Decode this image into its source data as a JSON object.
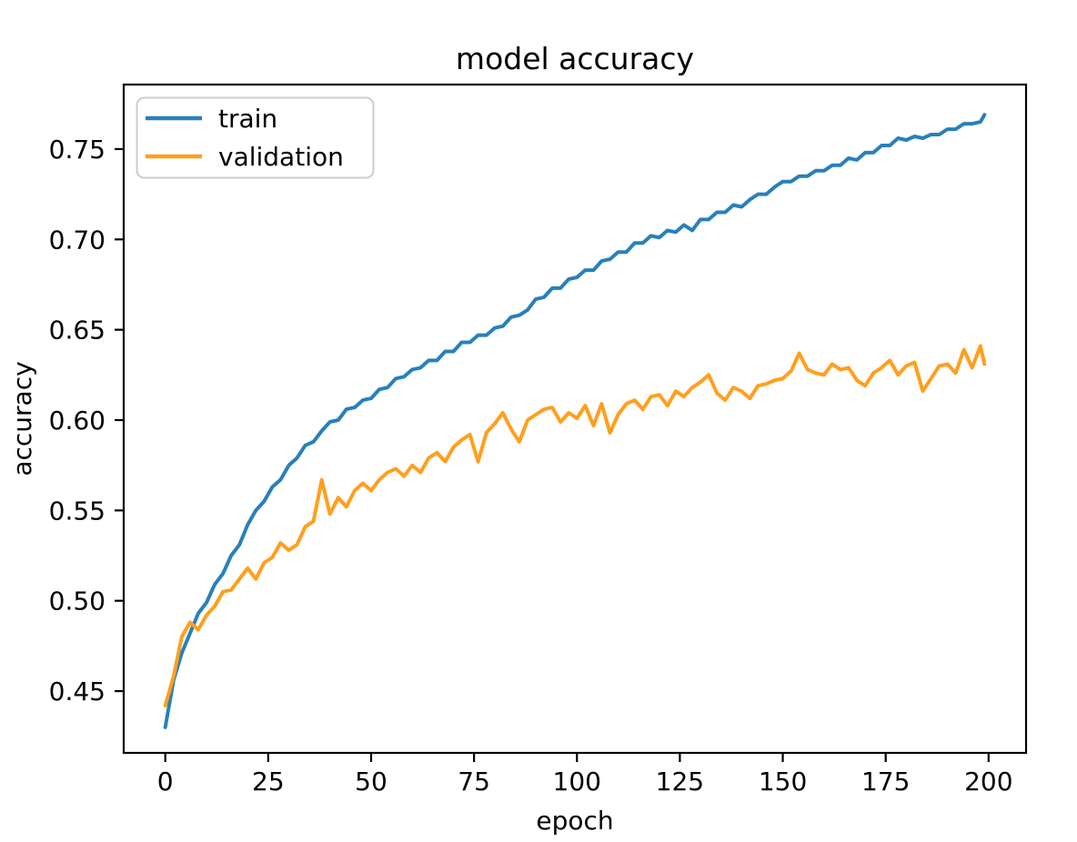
{
  "figure": {
    "background_color": "#ffffff",
    "spine_color": "#000000",
    "text_color": "#000000"
  },
  "chart_data": {
    "type": "line",
    "title": "model accuracy",
    "xlabel": "epoch",
    "ylabel": "accuracy",
    "grid": false,
    "xlim": [
      -10.1,
      209.1
    ],
    "ylim": [
      0.4158,
      0.7857
    ],
    "x_ticks": [
      0,
      25,
      50,
      75,
      100,
      125,
      150,
      175,
      200
    ],
    "x_tick_labels": [
      "0",
      "25",
      "50",
      "75",
      "100",
      "125",
      "150",
      "175",
      "200"
    ],
    "y_ticks": [
      0.45,
      0.5,
      0.55,
      0.6,
      0.65,
      0.7,
      0.75
    ],
    "y_tick_labels": [
      "0.45",
      "0.50",
      "0.55",
      "0.60",
      "0.65",
      "0.70",
      "0.75"
    ],
    "legend": {
      "position": "upper left"
    },
    "x": [
      0,
      2,
      4,
      6,
      8,
      10,
      12,
      14,
      16,
      18,
      20,
      22,
      24,
      26,
      28,
      30,
      32,
      34,
      36,
      38,
      40,
      42,
      44,
      46,
      48,
      50,
      52,
      54,
      56,
      58,
      60,
      62,
      64,
      66,
      68,
      70,
      72,
      74,
      76,
      78,
      80,
      82,
      84,
      86,
      88,
      90,
      92,
      94,
      96,
      98,
      100,
      102,
      104,
      106,
      108,
      110,
      112,
      114,
      116,
      118,
      120,
      122,
      124,
      126,
      128,
      130,
      132,
      134,
      136,
      138,
      140,
      142,
      144,
      146,
      148,
      150,
      152,
      154,
      156,
      158,
      160,
      162,
      164,
      166,
      168,
      170,
      172,
      174,
      176,
      178,
      180,
      182,
      184,
      186,
      188,
      190,
      192,
      194,
      196,
      198,
      199
    ],
    "series": [
      {
        "name": "train",
        "color": "#2980b9",
        "values": [
          0.43,
          0.456,
          0.471,
          0.482,
          0.493,
          0.499,
          0.509,
          0.515,
          0.525,
          0.531,
          0.542,
          0.55,
          0.555,
          0.563,
          0.567,
          0.575,
          0.579,
          0.586,
          0.588,
          0.594,
          0.599,
          0.6,
          0.606,
          0.607,
          0.611,
          0.612,
          0.617,
          0.618,
          0.623,
          0.624,
          0.628,
          0.629,
          0.633,
          0.633,
          0.638,
          0.638,
          0.643,
          0.643,
          0.647,
          0.647,
          0.651,
          0.652,
          0.657,
          0.658,
          0.661,
          0.667,
          0.668,
          0.673,
          0.673,
          0.678,
          0.679,
          0.683,
          0.683,
          0.688,
          0.689,
          0.693,
          0.693,
          0.698,
          0.698,
          0.702,
          0.701,
          0.705,
          0.704,
          0.708,
          0.705,
          0.711,
          0.711,
          0.715,
          0.715,
          0.719,
          0.718,
          0.722,
          0.725,
          0.725,
          0.729,
          0.732,
          0.732,
          0.735,
          0.735,
          0.738,
          0.738,
          0.741,
          0.741,
          0.745,
          0.744,
          0.748,
          0.748,
          0.752,
          0.752,
          0.756,
          0.755,
          0.757,
          0.756,
          0.758,
          0.758,
          0.761,
          0.761,
          0.764,
          0.764,
          0.765,
          0.769
        ]
      },
      {
        "name": "validation",
        "color": "#ff9f1e",
        "values": [
          0.442,
          0.458,
          0.48,
          0.488,
          0.484,
          0.492,
          0.497,
          0.505,
          0.506,
          0.512,
          0.518,
          0.512,
          0.521,
          0.524,
          0.532,
          0.528,
          0.531,
          0.541,
          0.544,
          0.567,
          0.548,
          0.557,
          0.552,
          0.561,
          0.565,
          0.561,
          0.567,
          0.571,
          0.573,
          0.569,
          0.575,
          0.571,
          0.579,
          0.582,
          0.577,
          0.585,
          0.589,
          0.592,
          0.577,
          0.593,
          0.598,
          0.604,
          0.595,
          0.588,
          0.6,
          0.603,
          0.606,
          0.607,
          0.599,
          0.604,
          0.601,
          0.608,
          0.597,
          0.609,
          0.593,
          0.603,
          0.609,
          0.611,
          0.606,
          0.613,
          0.614,
          0.608,
          0.616,
          0.613,
          0.618,
          0.621,
          0.625,
          0.615,
          0.611,
          0.618,
          0.616,
          0.612,
          0.619,
          0.62,
          0.622,
          0.623,
          0.627,
          0.637,
          0.628,
          0.626,
          0.625,
          0.631,
          0.628,
          0.629,
          0.622,
          0.619,
          0.626,
          0.629,
          0.633,
          0.625,
          0.63,
          0.632,
          0.616,
          0.623,
          0.63,
          0.631,
          0.626,
          0.639,
          0.629,
          0.641,
          0.631
        ]
      }
    ]
  }
}
